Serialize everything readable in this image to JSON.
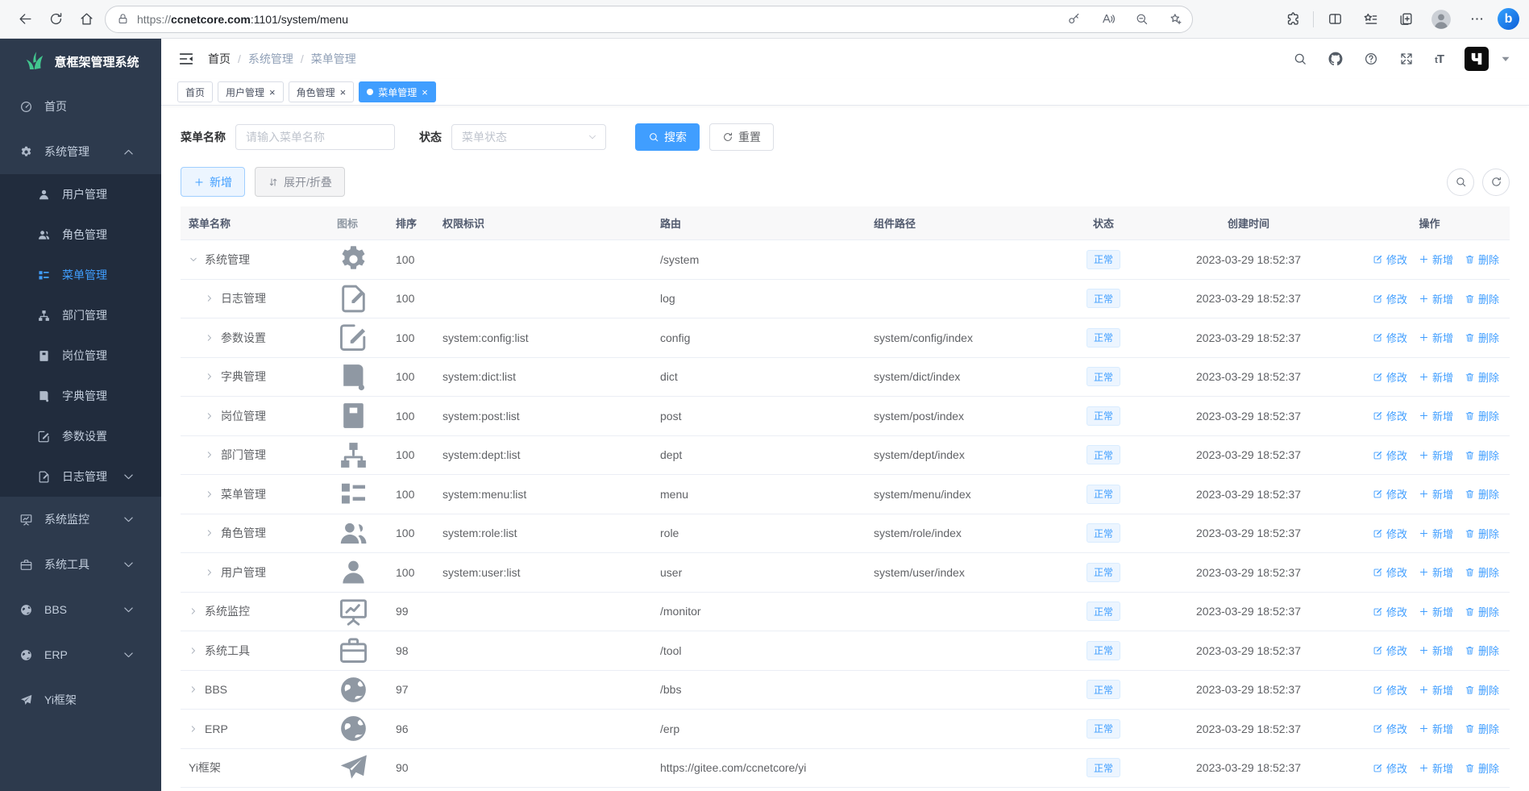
{
  "browser": {
    "url": {
      "scheme": "https://",
      "host": "ccnetcore.com",
      "path": ":1101/system/menu"
    }
  },
  "app": {
    "logo_text": "意框架管理系统",
    "sidebar": [
      {
        "label": "首页",
        "icon": "dashboard-icon",
        "level": 1
      },
      {
        "label": "系统管理",
        "icon": "gear-icon",
        "level": 1,
        "arrow": "up"
      },
      {
        "label": "用户管理",
        "icon": "user-icon",
        "level": 2
      },
      {
        "label": "角色管理",
        "icon": "users-icon",
        "level": 2
      },
      {
        "label": "菜单管理",
        "icon": "menu-icon",
        "level": 2,
        "active": true
      },
      {
        "label": "部门管理",
        "icon": "dept-icon",
        "level": 2
      },
      {
        "label": "岗位管理",
        "icon": "post-icon",
        "level": 2
      },
      {
        "label": "字典管理",
        "icon": "dict-icon",
        "level": 2
      },
      {
        "label": "参数设置",
        "icon": "config-icon",
        "level": 2
      },
      {
        "label": "日志管理",
        "icon": "log-icon",
        "level": 2,
        "arrow": "down"
      },
      {
        "label": "系统监控",
        "icon": "monitor-icon",
        "level": 1,
        "arrow": "down"
      },
      {
        "label": "系统工具",
        "icon": "tool-icon",
        "level": 1,
        "arrow": "down"
      },
      {
        "label": "BBS",
        "icon": "globe-icon",
        "level": 1,
        "arrow": "down"
      },
      {
        "label": "ERP",
        "icon": "globe-icon",
        "level": 1,
        "arrow": "down"
      },
      {
        "label": "Yi框架",
        "icon": "plane-icon",
        "level": 1
      }
    ],
    "breadcrumb": [
      "首页",
      "系统管理",
      "菜单管理"
    ],
    "tabs": [
      {
        "label": "首页",
        "closable": false,
        "active": false
      },
      {
        "label": "用户管理",
        "closable": true,
        "active": false
      },
      {
        "label": "角色管理",
        "closable": true,
        "active": false
      },
      {
        "label": "菜单管理",
        "closable": true,
        "active": true
      }
    ],
    "filter": {
      "name_label": "菜单名称",
      "name_placeholder": "请输入菜单名称",
      "status_label": "状态",
      "status_placeholder": "菜单状态",
      "search_label": "搜索",
      "reset_label": "重置"
    },
    "toolbar": {
      "add_label": "新增",
      "toggle_label": "展开/折叠"
    },
    "table": {
      "columns": [
        "菜单名称",
        "图标",
        "排序",
        "权限标识",
        "路由",
        "组件路径",
        "状态",
        "创建时间",
        "操作"
      ],
      "ops": [
        {
          "label": "修改",
          "icon": "edit-icon"
        },
        {
          "label": "新增",
          "icon": "plus-icon"
        },
        {
          "label": "删除",
          "icon": "trash-icon"
        }
      ],
      "rows": [
        {
          "name": "系统管理",
          "icon": "gear-icon",
          "arrow": "down",
          "level": 1,
          "sort": "100",
          "perm": "",
          "route": "/system",
          "comp": "",
          "status": "正常",
          "created": "2023-03-29 18:52:37"
        },
        {
          "name": "日志管理",
          "icon": "log-icon",
          "arrow": "right",
          "level": 2,
          "sort": "100",
          "perm": "",
          "route": "log",
          "comp": "",
          "status": "正常",
          "created": "2023-03-29 18:52:37"
        },
        {
          "name": "参数设置",
          "icon": "config-icon",
          "arrow": "right",
          "level": 2,
          "sort": "100",
          "perm": "system:config:list",
          "route": "config",
          "comp": "system/config/index",
          "status": "正常",
          "created": "2023-03-29 18:52:37"
        },
        {
          "name": "字典管理",
          "icon": "dict-icon",
          "arrow": "right",
          "level": 2,
          "sort": "100",
          "perm": "system:dict:list",
          "route": "dict",
          "comp": "system/dict/index",
          "status": "正常",
          "created": "2023-03-29 18:52:37"
        },
        {
          "name": "岗位管理",
          "icon": "post-icon",
          "arrow": "right",
          "level": 2,
          "sort": "100",
          "perm": "system:post:list",
          "route": "post",
          "comp": "system/post/index",
          "status": "正常",
          "created": "2023-03-29 18:52:37"
        },
        {
          "name": "部门管理",
          "icon": "dept-icon",
          "arrow": "right",
          "level": 2,
          "sort": "100",
          "perm": "system:dept:list",
          "route": "dept",
          "comp": "system/dept/index",
          "status": "正常",
          "created": "2023-03-29 18:52:37"
        },
        {
          "name": "菜单管理",
          "icon": "menu-icon",
          "arrow": "right",
          "level": 2,
          "sort": "100",
          "perm": "system:menu:list",
          "route": "menu",
          "comp": "system/menu/index",
          "status": "正常",
          "created": "2023-03-29 18:52:37"
        },
        {
          "name": "角色管理",
          "icon": "users-icon",
          "arrow": "right",
          "level": 2,
          "sort": "100",
          "perm": "system:role:list",
          "route": "role",
          "comp": "system/role/index",
          "status": "正常",
          "created": "2023-03-29 18:52:37"
        },
        {
          "name": "用户管理",
          "icon": "user-icon",
          "arrow": "right",
          "level": 2,
          "sort": "100",
          "perm": "system:user:list",
          "route": "user",
          "comp": "system/user/index",
          "status": "正常",
          "created": "2023-03-29 18:52:37"
        },
        {
          "name": "系统监控",
          "icon": "monitor-icon",
          "arrow": "right",
          "level": 1,
          "sort": "99",
          "perm": "",
          "route": "/monitor",
          "comp": "",
          "status": "正常",
          "created": "2023-03-29 18:52:37"
        },
        {
          "name": "系统工具",
          "icon": "tool-icon",
          "arrow": "right",
          "level": 1,
          "sort": "98",
          "perm": "",
          "route": "/tool",
          "comp": "",
          "status": "正常",
          "created": "2023-03-29 18:52:37"
        },
        {
          "name": "BBS",
          "icon": "globe-icon",
          "arrow": "right",
          "level": 1,
          "sort": "97",
          "perm": "",
          "route": "/bbs",
          "comp": "",
          "status": "正常",
          "created": "2023-03-29 18:52:37"
        },
        {
          "name": "ERP",
          "icon": "globe-icon",
          "arrow": "right",
          "level": 1,
          "sort": "96",
          "perm": "",
          "route": "/erp",
          "comp": "",
          "status": "正常",
          "created": "2023-03-29 18:52:37"
        },
        {
          "name": "Yi框架",
          "icon": "plane-icon",
          "arrow": null,
          "level": 1,
          "sort": "90",
          "perm": "",
          "route": "https://gitee.com/ccnetcore/yi",
          "comp": "",
          "status": "正常",
          "created": "2023-03-29 18:52:37"
        }
      ]
    }
  },
  "colors": {
    "accent": "#409eff",
    "sidebar_bg": "#2d3a4d",
    "sidebar_sub_bg": "#212c3d",
    "status_tag_bg": "#ecf5ff",
    "logo_green": "#42c78f"
  }
}
